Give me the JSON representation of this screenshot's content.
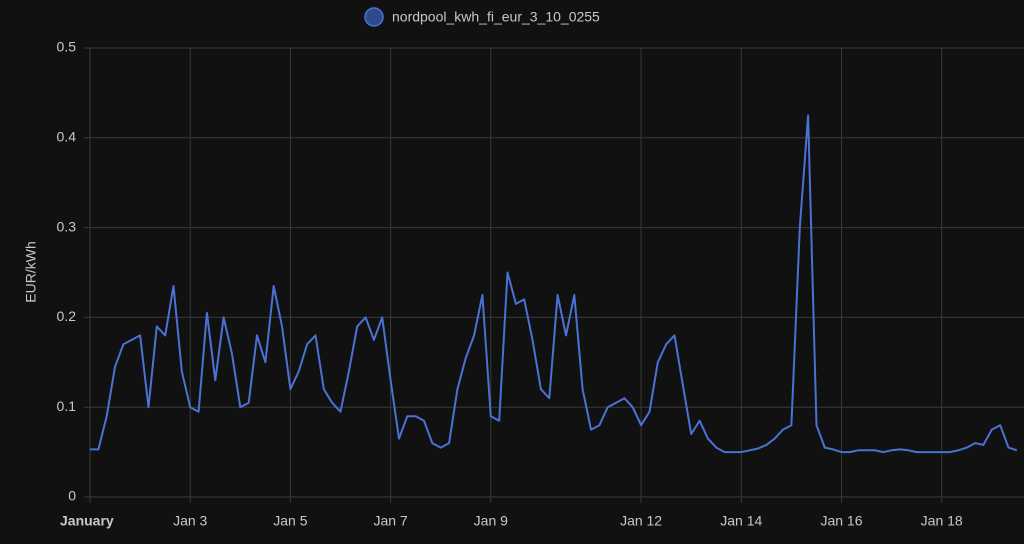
{
  "chart_data": {
    "type": "line",
    "ylabel": "EUR/kWh",
    "ylim": [
      0,
      0.5
    ],
    "yticks": [
      0,
      0.1,
      0.2,
      0.3,
      0.4,
      0.5
    ],
    "xlim": [
      1,
      19.6
    ],
    "xticks": [
      {
        "value": 1,
        "label": "January"
      },
      {
        "value": 3,
        "label": "Jan 3"
      },
      {
        "value": 5,
        "label": "Jan 5"
      },
      {
        "value": 7,
        "label": "Jan 7"
      },
      {
        "value": 9,
        "label": "Jan 9"
      },
      {
        "value": 12,
        "label": "Jan 12"
      },
      {
        "value": 14,
        "label": "Jan 14"
      },
      {
        "value": 16,
        "label": "Jan 16"
      },
      {
        "value": 18,
        "label": "Jan 18"
      }
    ],
    "grid": true,
    "legend": "top",
    "series": [
      {
        "name": "nordpool_kwh_fi_eur_3_10_0255",
        "color": "#4a72d4",
        "x": [
          1,
          1.167,
          1.333,
          1.5,
          1.667,
          1.833,
          2,
          2.167,
          2.333,
          2.5,
          2.667,
          2.833,
          3,
          3.167,
          3.333,
          3.5,
          3.667,
          3.833,
          4,
          4.167,
          4.333,
          4.5,
          4.667,
          4.833,
          5,
          5.167,
          5.333,
          5.5,
          5.667,
          5.833,
          6,
          6.167,
          6.333,
          6.5,
          6.667,
          6.833,
          7,
          7.167,
          7.333,
          7.5,
          7.667,
          7.833,
          8,
          8.167,
          8.333,
          8.5,
          8.667,
          8.833,
          9,
          9.167,
          9.333,
          9.5,
          9.667,
          9.833,
          10,
          10.167,
          10.333,
          10.5,
          10.667,
          10.833,
          11,
          11.167,
          11.333,
          11.5,
          11.667,
          11.833,
          12,
          12.167,
          12.333,
          12.5,
          12.667,
          12.833,
          13,
          13.167,
          13.333,
          13.5,
          13.667,
          13.833,
          14,
          14.167,
          14.333,
          14.5,
          14.667,
          14.833,
          15,
          15.167,
          15.333,
          15.5,
          15.667,
          15.833,
          16,
          16.167,
          16.333,
          16.5,
          16.667,
          16.833,
          17,
          17.167,
          17.333,
          17.5,
          17.667,
          17.833,
          18,
          18.167,
          18.333,
          18.5,
          18.667,
          18.833,
          19,
          19.167,
          19.333,
          19.5
        ],
        "values": [
          0.053,
          0.053,
          0.09,
          0.145,
          0.17,
          0.175,
          0.18,
          0.1,
          0.19,
          0.18,
          0.235,
          0.14,
          0.1,
          0.095,
          0.205,
          0.13,
          0.2,
          0.16,
          0.1,
          0.105,
          0.18,
          0.15,
          0.235,
          0.19,
          0.12,
          0.14,
          0.17,
          0.18,
          0.12,
          0.105,
          0.095,
          0.14,
          0.19,
          0.2,
          0.175,
          0.2,
          0.13,
          0.065,
          0.09,
          0.09,
          0.085,
          0.06,
          0.055,
          0.06,
          0.12,
          0.155,
          0.18,
          0.225,
          0.09,
          0.085,
          0.25,
          0.215,
          0.22,
          0.175,
          0.12,
          0.11,
          0.225,
          0.18,
          0.225,
          0.12,
          0.075,
          0.08,
          0.1,
          0.105,
          0.11,
          0.1,
          0.08,
          0.095,
          0.15,
          0.17,
          0.18,
          0.125,
          0.07,
          0.085,
          0.065,
          0.055,
          0.05,
          0.05,
          0.05,
          0.052,
          0.054,
          0.058,
          0.065,
          0.075,
          0.08,
          0.3,
          0.425,
          0.08,
          0.055,
          0.053,
          0.05,
          0.05,
          0.052,
          0.052,
          0.052,
          0.05,
          0.052,
          0.053,
          0.052,
          0.05,
          0.05,
          0.05,
          0.05,
          0.05,
          0.052,
          0.055,
          0.06,
          0.058,
          0.075,
          0.08,
          0.055,
          0.052
        ]
      }
    ]
  }
}
